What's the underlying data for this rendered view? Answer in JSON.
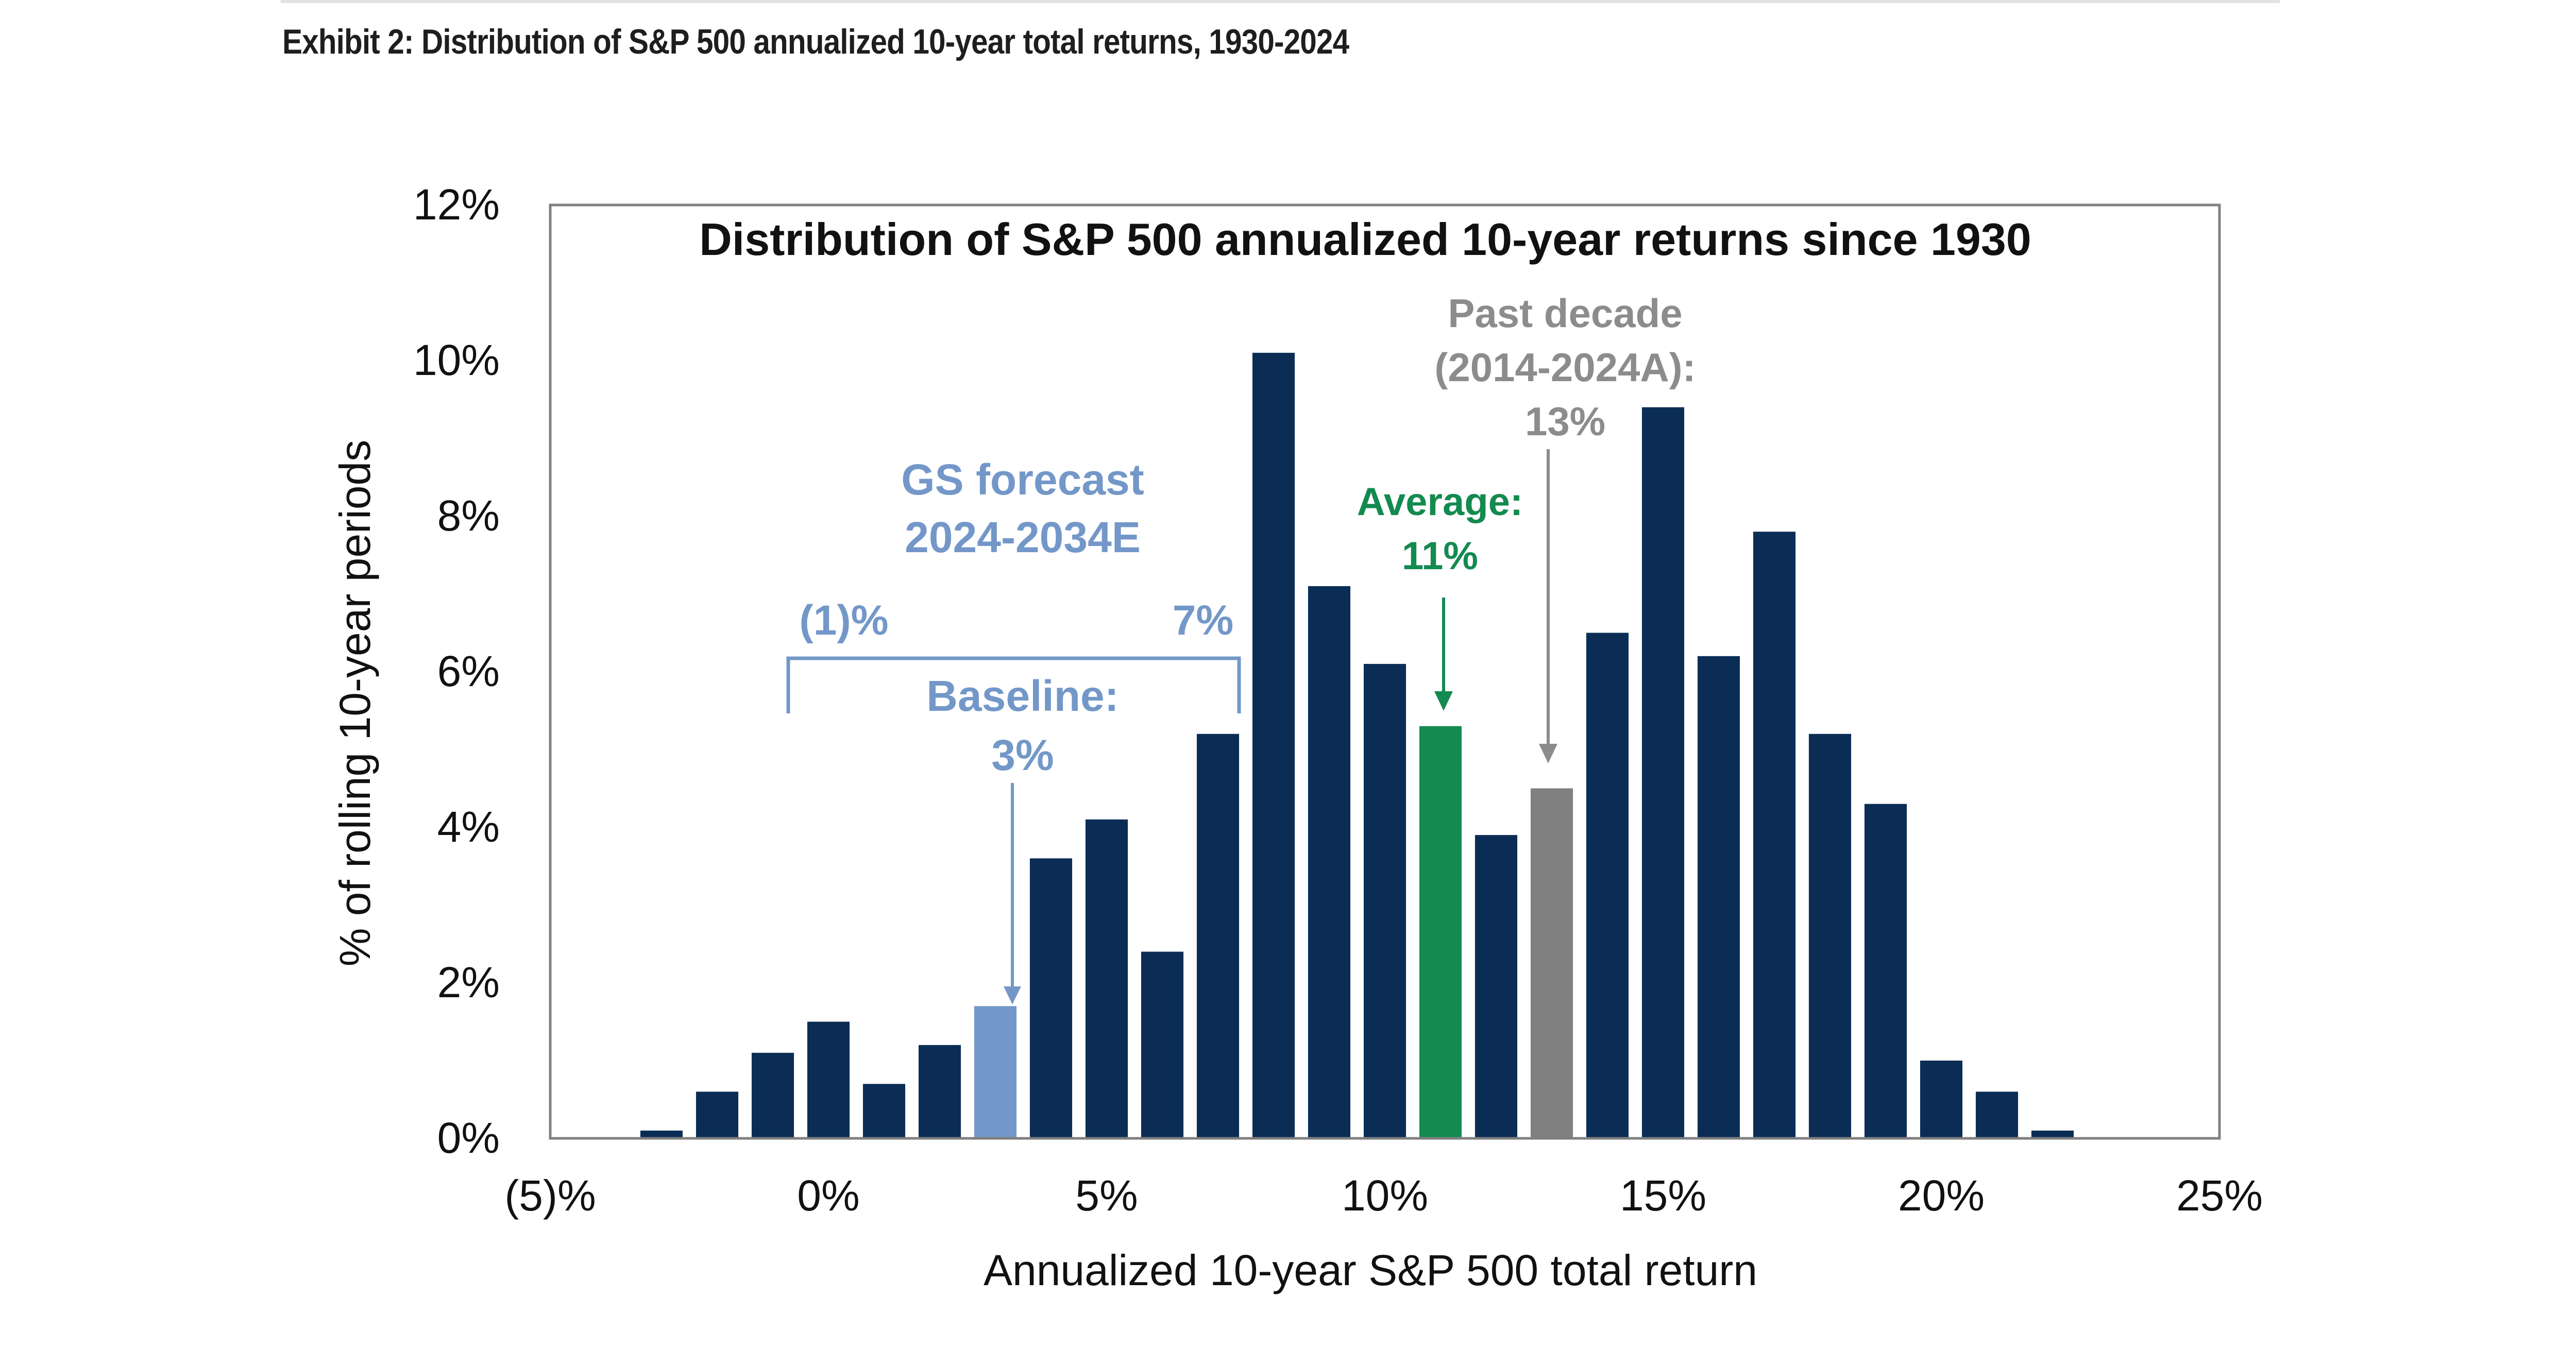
{
  "exhibit_title": "Exhibit 2: Distribution of S&P 500 annualized 10-year total returns, 1930-2024",
  "colors": {
    "bar": "#0b2d55",
    "forecast": "#7397c8",
    "average": "#138a4f",
    "past": "#808080",
    "axis": "#808080"
  },
  "annotations": {
    "gs_line1": "GS forecast",
    "gs_line2": "2024-2034E",
    "range_low": "(1)%",
    "range_high": "7%",
    "baseline_line1": "Baseline:",
    "baseline_line2": "3%",
    "average_line1": "Average:",
    "average_line2": "11%",
    "past_line1": "Past decade",
    "past_line2": "(2014-2024A):",
    "past_line3": "13%"
  },
  "chart_data": {
    "type": "bar",
    "title": "Distribution of S&P 500 annualized 10-year returns since 1930",
    "xlabel": "Annualized 10-year S&P 500 total return",
    "ylabel": "% of rolling 10-year periods",
    "xlim": [
      -5,
      25
    ],
    "ylim": [
      0,
      12
    ],
    "x_ticks": [
      -5,
      0,
      5,
      10,
      15,
      20,
      25
    ],
    "x_tick_labels": [
      "(5)%",
      "0%",
      "5%",
      "10%",
      "15%",
      "20%",
      "25%"
    ],
    "y_ticks": [
      0,
      2,
      4,
      6,
      8,
      10,
      12
    ],
    "y_tick_labels": [
      "0%",
      "2%",
      "4%",
      "6%",
      "8%",
      "10%",
      "12%"
    ],
    "grid": false,
    "bin_width": 1,
    "x": [
      -3,
      -2,
      -1,
      0,
      1,
      2,
      3,
      4,
      5,
      6,
      7,
      8,
      9,
      10,
      11,
      12,
      13,
      14,
      15,
      16,
      17,
      18,
      19,
      20,
      21,
      22
    ],
    "values": [
      0.1,
      0.6,
      1.1,
      1.5,
      0.7,
      1.2,
      1.7,
      3.6,
      4.1,
      2.4,
      5.2,
      10.1,
      7.1,
      6.1,
      5.3,
      3.9,
      4.5,
      6.5,
      9.4,
      6.2,
      7.8,
      5.2,
      4.3,
      1.0,
      0.6,
      0.1
    ],
    "highlights": {
      "3": "forecast",
      "11": "average",
      "13": "past"
    }
  }
}
